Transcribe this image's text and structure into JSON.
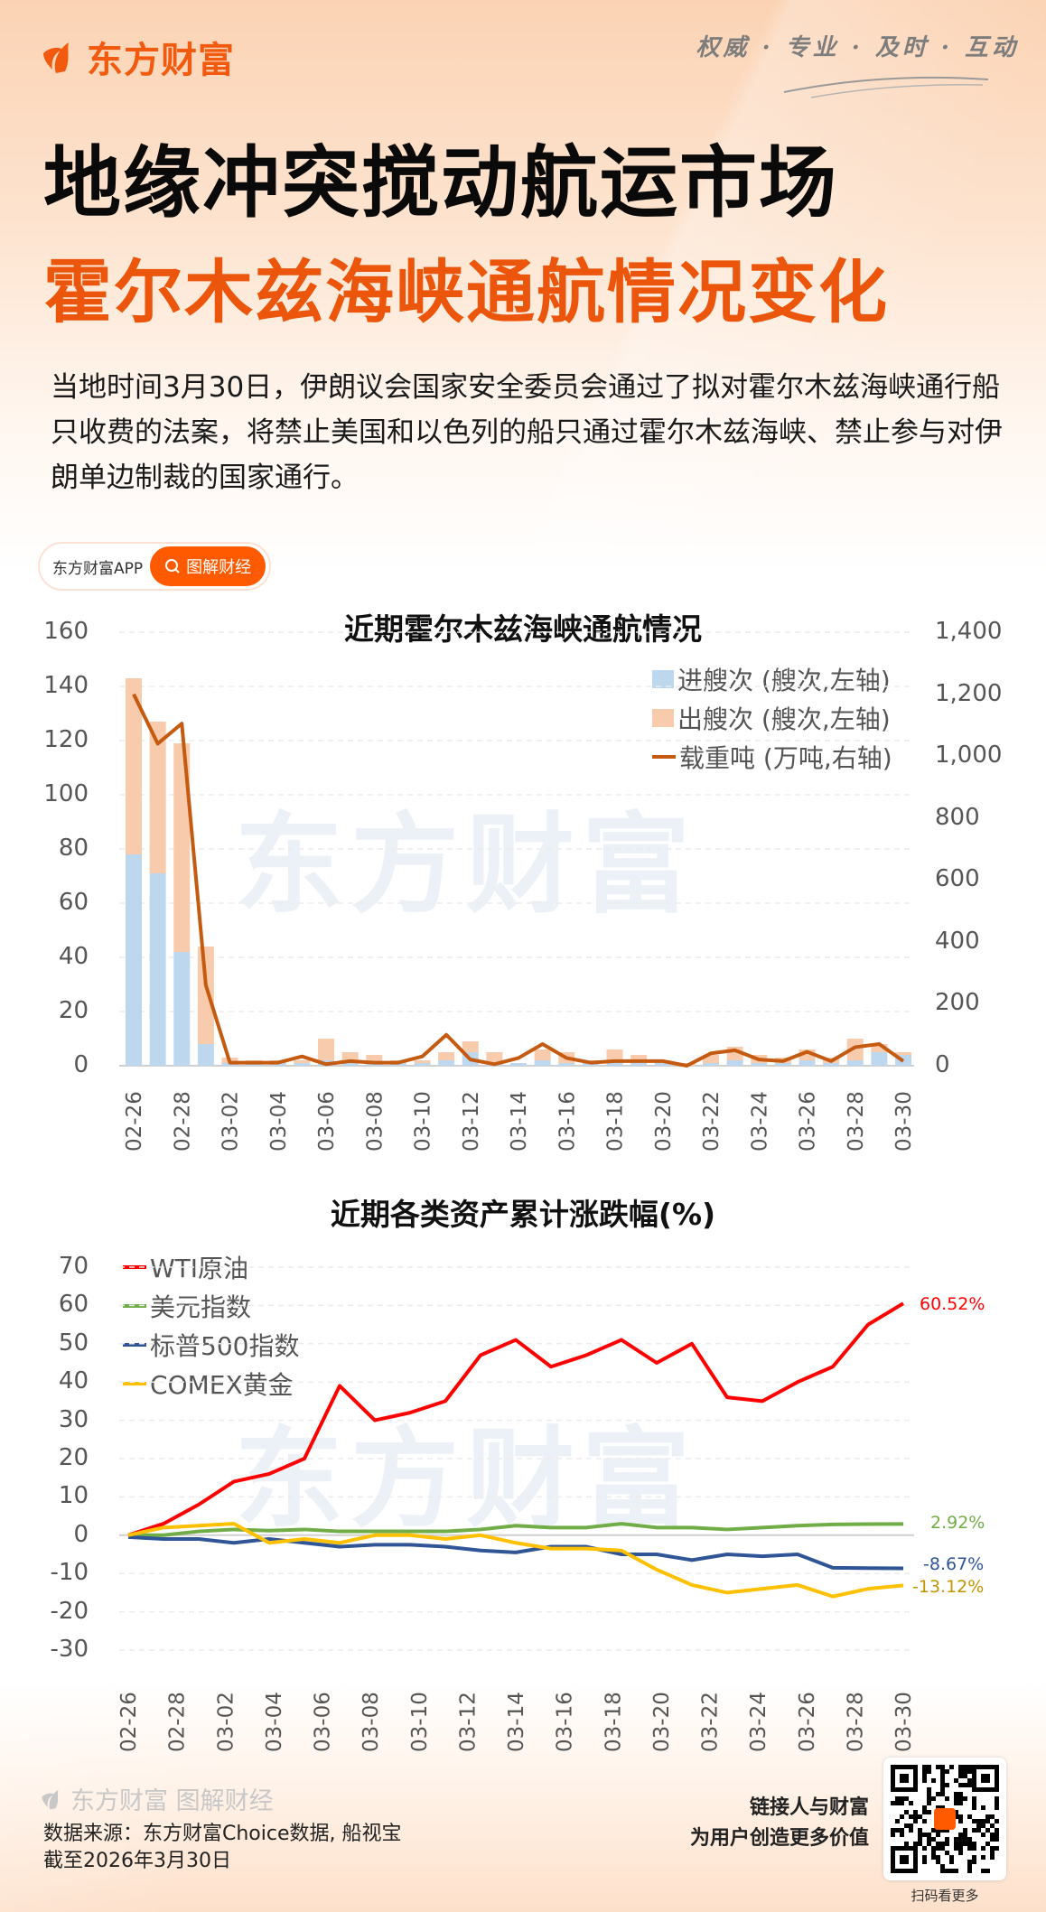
{
  "brand": {
    "name": "东方财富",
    "slogan": "权威 · 专业 · 及时 · 互动",
    "accent": "#ff5a00"
  },
  "header": {
    "title": "地缘冲突搅动航运市场",
    "subtitle": "霍尔木兹海峡通航情况变化",
    "intro": "当地时间3月30日，伊朗议会国家安全委员会通过了拟对霍尔木兹海峡通行船只收费的法案，将禁止美国和以色列的船只通过霍尔木兹海峡、禁止参与对伊朗单边制裁的国家通行。"
  },
  "badge": {
    "app_label": "东方财富APP",
    "button_label": "图解财经"
  },
  "watermark": "东方财富",
  "chart_data": [
    {
      "type": "bar",
      "stacked": true,
      "title": "近期霍尔木兹海峡通航情况",
      "categories": [
        "02-26",
        "02-27",
        "02-28",
        "03-01",
        "03-02",
        "03-03",
        "03-04",
        "03-05",
        "03-06",
        "03-07",
        "03-08",
        "03-09",
        "03-10",
        "03-11",
        "03-12",
        "03-13",
        "03-14",
        "03-15",
        "03-16",
        "03-17",
        "03-18",
        "03-19",
        "03-20",
        "03-21",
        "03-22",
        "03-23",
        "03-24",
        "03-25",
        "03-26",
        "03-27",
        "03-28",
        "03-29",
        "03-30"
      ],
      "xtick_labels": [
        "02-26",
        "02-28",
        "03-02",
        "03-04",
        "03-06",
        "03-08",
        "03-10",
        "03-12",
        "03-14",
        "03-16",
        "03-18",
        "03-20",
        "03-22",
        "03-24",
        "03-26",
        "03-28",
        "03-30"
      ],
      "series": [
        {
          "name": "进艘次 (艘次,左轴)",
          "kind": "bar",
          "axis": "left",
          "color": "#bdd7ee",
          "values": [
            78,
            71,
            42,
            8,
            1,
            1,
            1,
            1,
            2,
            1,
            1,
            1,
            1,
            2,
            5,
            1,
            1,
            2,
            1,
            1,
            2,
            1,
            1,
            0,
            1,
            2,
            1,
            1,
            2,
            1,
            2,
            5,
            4
          ]
        },
        {
          "name": "出艘次 (艘次,左轴)",
          "kind": "bar",
          "axis": "left",
          "color": "#f8cbad",
          "values": [
            65,
            56,
            77,
            36,
            2,
            1,
            1,
            1,
            8,
            4,
            3,
            1,
            1,
            3,
            4,
            4,
            0,
            4,
            4,
            1,
            4,
            3,
            1,
            1,
            3,
            5,
            3,
            2,
            4,
            2,
            8,
            3,
            1
          ]
        },
        {
          "name": "载重吨 (万吨,右轴)",
          "kind": "line",
          "axis": "right",
          "color": "#c55a11",
          "values": [
            1200,
            1040,
            1105,
            260,
            10,
            10,
            10,
            30,
            5,
            15,
            10,
            10,
            30,
            100,
            20,
            5,
            25,
            70,
            25,
            10,
            15,
            15,
            15,
            0,
            40,
            50,
            20,
            15,
            45,
            15,
            60,
            70,
            15
          ]
        }
      ],
      "yleft": {
        "min": 0,
        "max": 160,
        "ticks": [
          "160",
          "140",
          "120",
          "100",
          "80",
          "60",
          "40",
          "20",
          "0"
        ]
      },
      "yright": {
        "min": 0,
        "max": 1400,
        "ticks": [
          "1,400",
          "1,200",
          "1,000",
          "800",
          "600",
          "400",
          "200",
          "0"
        ]
      },
      "legend_position": "top-right",
      "grid": true
    },
    {
      "type": "line",
      "title": "近期各类资产累计涨跌幅(%)",
      "x": [
        "02-26",
        "02-27",
        "03-02",
        "03-03",
        "03-04",
        "03-05",
        "03-06",
        "03-09",
        "03-10",
        "03-11",
        "03-12",
        "03-13",
        "03-16",
        "03-17",
        "03-18",
        "03-19",
        "03-20",
        "03-23",
        "03-24",
        "03-25",
        "03-26",
        "03-27",
        "03-30"
      ],
      "xtick_labels": [
        "02-26",
        "02-28",
        "03-02",
        "03-04",
        "03-06",
        "03-08",
        "03-10",
        "03-12",
        "03-14",
        "03-16",
        "03-18",
        "03-20",
        "03-22",
        "03-24",
        "03-26",
        "03-28",
        "03-30"
      ],
      "series": [
        {
          "name": "WTI原油",
          "color": "#ff0000",
          "end_label": "60.52%",
          "values": [
            0,
            3,
            8,
            14,
            16,
            20,
            39,
            30,
            32,
            35,
            47,
            51,
            44,
            47,
            51,
            45,
            50,
            36,
            35,
            40,
            44,
            55,
            60.52
          ]
        },
        {
          "name": "美元指数",
          "color": "#70ad47",
          "end_label": "2.92%",
          "values": [
            0,
            0,
            1,
            1.5,
            1.2,
            1.5,
            1,
            1,
            1,
            1,
            1.5,
            2.5,
            2,
            2,
            3,
            2,
            2,
            1.5,
            2,
            2.5,
            2.8,
            2.9,
            2.92
          ]
        },
        {
          "name": "标普500指数",
          "color": "#2f5597",
          "end_label": "-8.67%",
          "values": [
            -0.5,
            -1,
            -1,
            -2,
            -1,
            -2,
            -3,
            -2.5,
            -2.5,
            -3,
            -4,
            -4.5,
            -3,
            -3,
            -5,
            -5,
            -6.5,
            -5,
            -5.5,
            -5,
            -8.5,
            -8.6,
            -8.67
          ]
        },
        {
          "name": "COMEX黄金",
          "color": "#ffc000",
          "end_label": "-13.12%",
          "values": [
            0,
            2,
            2.5,
            3,
            -2,
            -1,
            -2,
            0,
            0,
            -1,
            0,
            -2,
            -3.5,
            -3.5,
            -4,
            -9,
            -13,
            -15,
            -14,
            -13,
            -16,
            -14,
            -13.12
          ]
        }
      ],
      "y": {
        "min": -30,
        "max": 70,
        "ticks": [
          "70",
          "60",
          "50",
          "40",
          "30",
          "20",
          "10",
          "0",
          "-10",
          "-20",
          "-30"
        ]
      },
      "legend_position": "top-left",
      "grid": true
    }
  ],
  "footer": {
    "logo_text": "东方财富 图解财经",
    "source": "数据来源：东方财富Choice数据, 船视宝",
    "as_of": "截至2026年3月30日",
    "slogan_line1": "链接人与财富",
    "slogan_line2": "为用户创造更多价值",
    "qr_caption": "扫码看更多"
  }
}
